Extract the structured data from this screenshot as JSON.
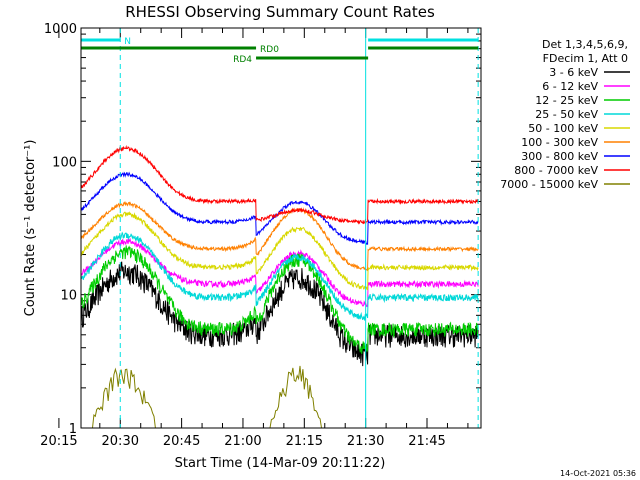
{
  "chart_data": {
    "type": "line",
    "title": "RHESSI Observing Summary Count Rates",
    "xlabel": "Start Time (14-Mar-09 20:11:22)",
    "ylabel": "Count Rate (s⁻¹ detector⁻¹)",
    "yscale": "log",
    "ylim": [
      1,
      1000
    ],
    "xlim_minutes": [
      20.4,
      118.2
    ],
    "y_ticks": [
      {
        "value": 1,
        "label": "1"
      },
      {
        "value": 10,
        "label": "10"
      },
      {
        "value": 100,
        "label": "100"
      },
      {
        "value": 1000,
        "label": "1000"
      }
    ],
    "x_ticks": [
      {
        "value": 15,
        "label": "20:15"
      },
      {
        "value": 30,
        "label": "20:30"
      },
      {
        "value": 45,
        "label": "20:45"
      },
      {
        "value": 60,
        "label": "21:00"
      },
      {
        "value": 75,
        "label": "21:15"
      },
      {
        "value": 90,
        "label": "21:30"
      },
      {
        "value": 105,
        "label": "21:45"
      }
    ],
    "legend": {
      "placement": "right",
      "header": [
        "Det 1,3,4,5,6,9,",
        "FDecim 1, Att 0"
      ]
    },
    "series": [
      {
        "name": "3 - 6 keV",
        "color": "#000000",
        "base": 5,
        "peak1": 15,
        "peak2": 15,
        "noise": 0.2
      },
      {
        "name": "6 - 12 keV",
        "color": "#ff00ff",
        "base": 12,
        "peak1": 25,
        "peak2": 24,
        "noise": 0.05
      },
      {
        "name": "12 - 25 keV",
        "color": "#00cc00",
        "base": 5.5,
        "peak1": 21,
        "peak2": 20,
        "noise": 0.12
      },
      {
        "name": "25 - 50 keV",
        "color": "#00d8d8",
        "base": 9.5,
        "peak1": 28,
        "peak2": 22,
        "noise": 0.06
      },
      {
        "name": "50 - 100 keV",
        "color": "#d8d800",
        "base": 16,
        "peak1": 40,
        "peak2": 36,
        "noise": 0.04
      },
      {
        "name": "100 - 300 keV",
        "color": "#ff8000",
        "base": 22,
        "peak1": 48,
        "peak2": 50,
        "noise": 0.03
      },
      {
        "name": "300 - 800 keV",
        "color": "#0000ff",
        "base": 35,
        "peak1": 80,
        "peak2": 60,
        "noise": 0.03
      },
      {
        "name": "800 - 7000 keV",
        "color": "#ff0000",
        "base": 50,
        "peak1": 125,
        "peak2": 58,
        "noise": 0.03
      },
      {
        "name": "7000 - 15000 keV",
        "color": "#808000",
        "base": 1,
        "peak1": 2.6,
        "peak2": 2.6,
        "noise": 0.15
      }
    ],
    "events": [
      {
        "label": "N",
        "color": "#00e0e0",
        "start": 20.4,
        "end": 30.0
      },
      {
        "label": "N",
        "color": "#00e0e0",
        "start": 90.6,
        "end": 117.5
      },
      {
        "label": "RD0",
        "color": "#008000",
        "start": 20.4,
        "end": 63.2
      },
      {
        "label": "RD0",
        "color": "#008000",
        "start": 90.6,
        "end": 117.5
      },
      {
        "label": "RD4",
        "color": "#008000",
        "start": 63.2,
        "end": 90.6
      }
    ],
    "night_lines": [
      {
        "x": 30.0,
        "color": "#00e0e0",
        "style": "dashed"
      },
      {
        "x": 90.0,
        "color": "#00e0e0",
        "style": "solid"
      },
      {
        "x": 117.5,
        "color": "#00e0e0",
        "style": "dashed"
      },
      {
        "x": 20.4,
        "color": "#00e0e0",
        "style": "solid"
      }
    ],
    "timestamp": "14-Oct-2021 05:36"
  }
}
